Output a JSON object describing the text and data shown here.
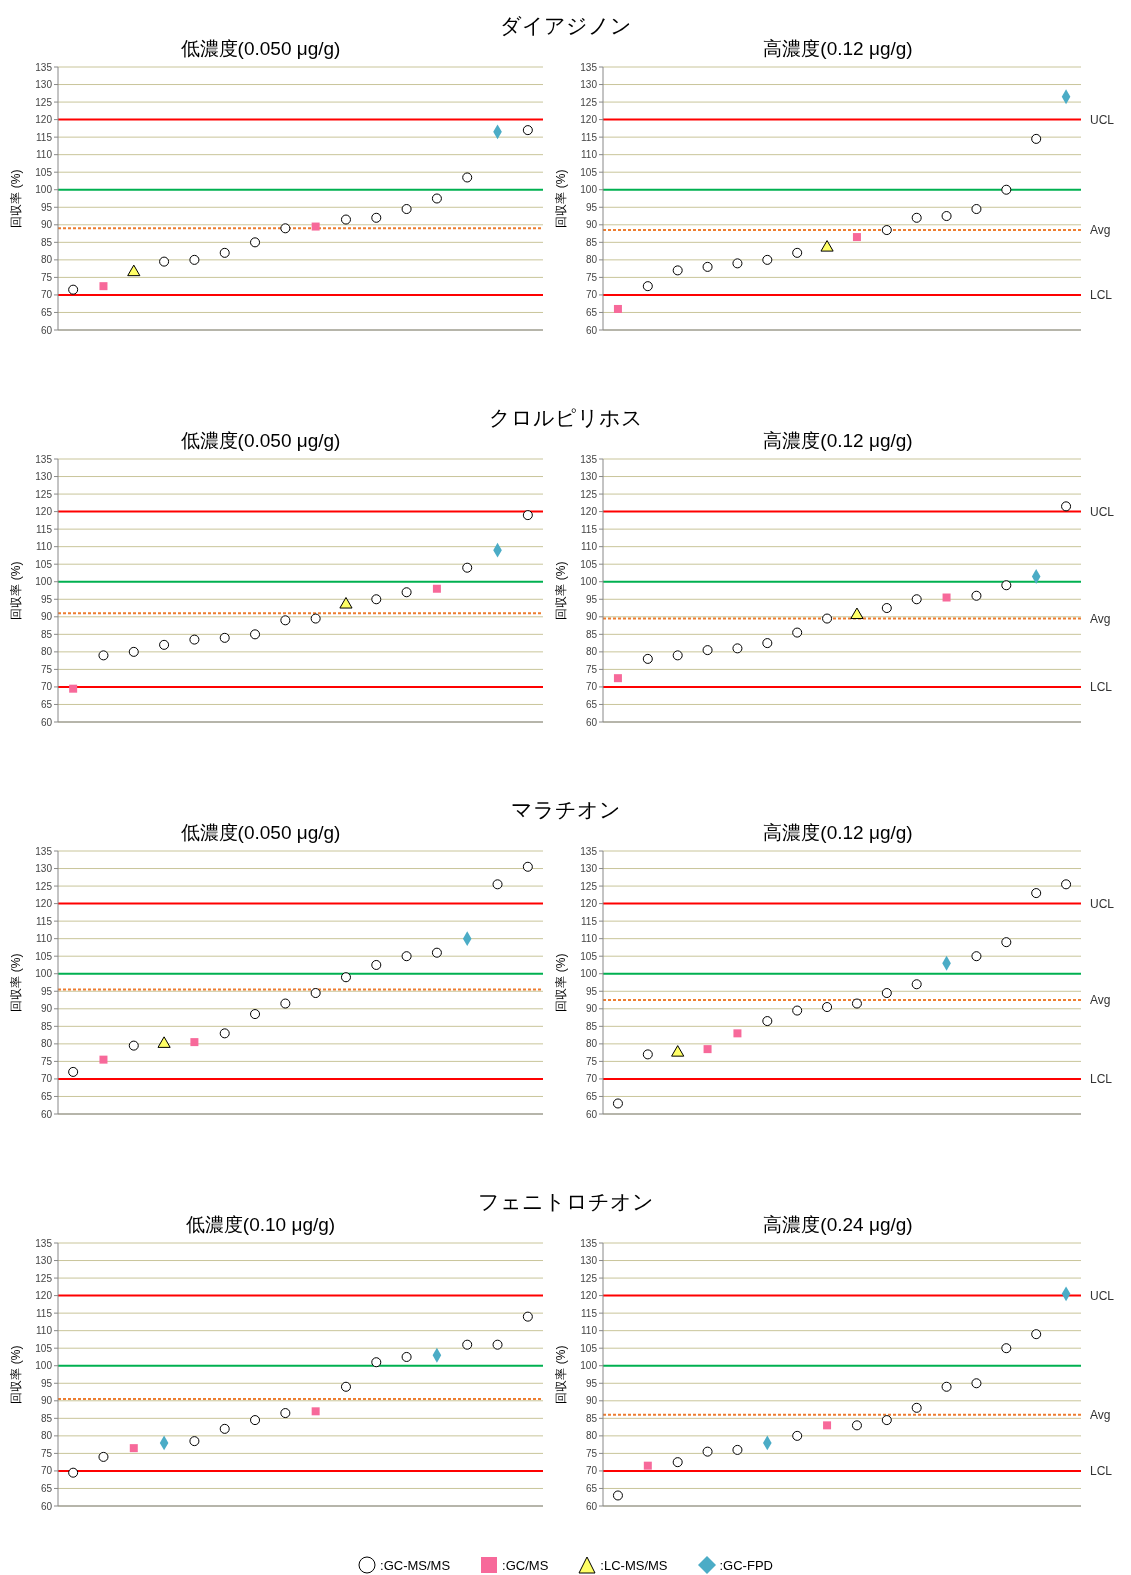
{
  "chart_data": [
    {
      "type": "scatter",
      "title": "ダイアジノン",
      "subtitle": "低濃度(0.050 μg/g)",
      "ylabel": "回収率 (%)",
      "categories": [
        null,
        null,
        null,
        null,
        null,
        null,
        null,
        null,
        null,
        null,
        null,
        null,
        null,
        null,
        null,
        null
      ],
      "ylim": [
        60,
        135
      ],
      "yticks": [
        60,
        65,
        70,
        75,
        80,
        85,
        90,
        95,
        100,
        105,
        110,
        115,
        120,
        125,
        130,
        135
      ],
      "grid": "y",
      "tick_labels": "y",
      "series": [
        {
          "marker": "circle",
          "color": "#000000",
          "values": [
            71.5,
            null,
            null,
            79.5,
            80,
            82,
            85,
            89,
            null,
            91.5,
            92,
            94.5,
            97.5,
            103.5,
            null,
            117
          ]
        },
        {
          "marker": "square",
          "color": "#f7699a",
          "values": [
            null,
            72.5,
            null,
            null,
            null,
            null,
            null,
            null,
            89.5,
            null,
            null,
            null,
            null,
            null,
            null,
            null
          ]
        },
        {
          "marker": "triangle",
          "color": "#ffff66",
          "values": [
            null,
            null,
            76.5,
            null,
            null,
            null,
            null,
            null,
            null,
            null,
            null,
            null,
            null,
            null,
            null,
            null
          ]
        },
        {
          "marker": "diamond",
          "color": "#4bacc6",
          "values": [
            null,
            null,
            null,
            null,
            null,
            null,
            null,
            null,
            null,
            null,
            null,
            null,
            null,
            null,
            116.5,
            null
          ]
        }
      ],
      "ref_lines": [
        {
          "axis": "y",
          "value": 120,
          "color": "#ff0000",
          "line_style": "solid"
        },
        {
          "axis": "y",
          "value": 100,
          "color": "#00b050",
          "line_style": "solid"
        },
        {
          "axis": "y",
          "value": 89,
          "color": "#ed7d31",
          "line_style": "dotted"
        },
        {
          "axis": "y",
          "value": 70,
          "color": "#fe0101",
          "line_style": "solid"
        }
      ]
    },
    {
      "type": "scatter",
      "subtitle": "高濃度(0.12 μg/g)",
      "ylabel": "回収率 (%)",
      "categories": [
        null,
        null,
        null,
        null,
        null,
        null,
        null,
        null,
        null,
        null,
        null,
        null,
        null,
        null,
        null,
        null
      ],
      "ylim": [
        60,
        135
      ],
      "yticks": [
        60,
        65,
        70,
        75,
        80,
        85,
        90,
        95,
        100,
        105,
        110,
        115,
        120,
        125,
        130,
        135
      ],
      "grid": "y",
      "tick_labels": "y",
      "series": [
        {
          "marker": "circle",
          "color": "#000000",
          "values": [
            null,
            72.5,
            77,
            78,
            79,
            80,
            82,
            null,
            null,
            88.5,
            92,
            92.5,
            94.5,
            100,
            114.5,
            null
          ]
        },
        {
          "marker": "square",
          "color": "#f7699a",
          "values": [
            66,
            null,
            null,
            null,
            null,
            null,
            null,
            null,
            86.5,
            null,
            null,
            null,
            null,
            null,
            null,
            null
          ]
        },
        {
          "marker": "triangle",
          "color": "#ffff66",
          "values": [
            null,
            null,
            null,
            null,
            null,
            null,
            null,
            83.5,
            null,
            null,
            null,
            null,
            null,
            null,
            null,
            null
          ]
        },
        {
          "marker": "diamond",
          "color": "#4bacc6",
          "values": [
            null,
            null,
            null,
            null,
            null,
            null,
            null,
            null,
            null,
            null,
            null,
            null,
            null,
            null,
            null,
            126.5
          ]
        }
      ],
      "ref_lines": [
        {
          "axis": "y",
          "value": 120,
          "label": "UCL",
          "color": "#ff0000",
          "line_style": "solid"
        },
        {
          "axis": "y",
          "value": 100,
          "color": "#00b050",
          "line_style": "solid"
        },
        {
          "axis": "y",
          "value": 88.5,
          "label": "Avg",
          "color": "#ed7d31",
          "line_style": "dotted"
        },
        {
          "axis": "y",
          "value": 70,
          "label": "LCL",
          "color": "#fe0101",
          "line_style": "solid"
        }
      ]
    },
    {
      "type": "scatter",
      "title": "クロルピリホス",
      "subtitle": "低濃度(0.050 μg/g)",
      "ylabel": "回収率 (%)",
      "categories": [
        null,
        null,
        null,
        null,
        null,
        null,
        null,
        null,
        null,
        null,
        null,
        null,
        null,
        null,
        null,
        null
      ],
      "ylim": [
        60,
        135
      ],
      "yticks": [
        60,
        65,
        70,
        75,
        80,
        85,
        90,
        95,
        100,
        105,
        110,
        115,
        120,
        125,
        130,
        135
      ],
      "grid": "y",
      "tick_labels": "y",
      "series": [
        {
          "marker": "circle",
          "color": "#000000",
          "values": [
            null,
            79,
            80,
            82,
            83.5,
            84,
            85,
            89,
            89.5,
            null,
            95,
            97,
            null,
            104,
            null,
            119
          ]
        },
        {
          "marker": "square",
          "color": "#f7699a",
          "values": [
            69.5,
            null,
            null,
            null,
            null,
            null,
            null,
            null,
            null,
            null,
            null,
            null,
            98,
            null,
            null,
            null
          ]
        },
        {
          "marker": "triangle",
          "color": "#ffff66",
          "values": [
            null,
            null,
            null,
            null,
            null,
            null,
            null,
            null,
            null,
            93.5,
            null,
            null,
            null,
            null,
            null,
            null
          ]
        },
        {
          "marker": "diamond",
          "color": "#4bacc6",
          "values": [
            null,
            null,
            null,
            null,
            null,
            null,
            null,
            null,
            null,
            null,
            null,
            null,
            null,
            null,
            109,
            null
          ]
        }
      ],
      "ref_lines": [
        {
          "axis": "y",
          "value": 120,
          "color": "#ff0000",
          "line_style": "solid"
        },
        {
          "axis": "y",
          "value": 100,
          "color": "#00b050",
          "line_style": "solid"
        },
        {
          "axis": "y",
          "value": 91,
          "color": "#ed7d31",
          "line_style": "dotted"
        },
        {
          "axis": "y",
          "value": 70,
          "color": "#fe0101",
          "line_style": "solid"
        }
      ]
    },
    {
      "type": "scatter",
      "subtitle": "高濃度(0.12 μg/g)",
      "ylabel": "回収率 (%)",
      "categories": [
        null,
        null,
        null,
        null,
        null,
        null,
        null,
        null,
        null,
        null,
        null,
        null,
        null,
        null,
        null,
        null
      ],
      "ylim": [
        60,
        135
      ],
      "yticks": [
        60,
        65,
        70,
        75,
        80,
        85,
        90,
        95,
        100,
        105,
        110,
        115,
        120,
        125,
        130,
        135
      ],
      "grid": "y",
      "tick_labels": "y",
      "series": [
        {
          "marker": "circle",
          "color": "#000000",
          "values": [
            null,
            78,
            79,
            80.5,
            81,
            82.5,
            85.5,
            89.5,
            null,
            92.5,
            95,
            null,
            96,
            99,
            null,
            121.5
          ]
        },
        {
          "marker": "square",
          "color": "#f7699a",
          "values": [
            72.5,
            null,
            null,
            null,
            null,
            null,
            null,
            null,
            null,
            null,
            null,
            95.5,
            null,
            null,
            null,
            null
          ]
        },
        {
          "marker": "triangle",
          "color": "#ffff66",
          "values": [
            null,
            null,
            null,
            null,
            null,
            null,
            null,
            null,
            90.5,
            null,
            null,
            null,
            null,
            null,
            null,
            null
          ]
        },
        {
          "marker": "diamond",
          "color": "#4bacc6",
          "values": [
            null,
            null,
            null,
            null,
            null,
            null,
            null,
            null,
            null,
            null,
            null,
            null,
            null,
            null,
            101.5,
            null
          ]
        }
      ],
      "ref_lines": [
        {
          "axis": "y",
          "value": 120,
          "label": "UCL",
          "color": "#ff0000",
          "line_style": "solid"
        },
        {
          "axis": "y",
          "value": 100,
          "color": "#00b050",
          "line_style": "solid"
        },
        {
          "axis": "y",
          "value": 89.5,
          "label": "Avg",
          "color": "#ed7d31",
          "line_style": "dotted"
        },
        {
          "axis": "y",
          "value": 70,
          "label": "LCL",
          "color": "#fe0101",
          "line_style": "solid"
        }
      ]
    },
    {
      "type": "scatter",
      "title": "マラチオン",
      "subtitle": "低濃度(0.050 μg/g)",
      "ylabel": "回収率 (%)",
      "categories": [
        null,
        null,
        null,
        null,
        null,
        null,
        null,
        null,
        null,
        null,
        null,
        null,
        null,
        null,
        null,
        null
      ],
      "ylim": [
        60,
        135
      ],
      "yticks": [
        60,
        65,
        70,
        75,
        80,
        85,
        90,
        95,
        100,
        105,
        110,
        115,
        120,
        125,
        130,
        135
      ],
      "grid": "y",
      "tick_labels": "y",
      "series": [
        {
          "marker": "circle",
          "color": "#000000",
          "values": [
            72,
            null,
            79.5,
            null,
            null,
            83,
            88.5,
            91.5,
            94.5,
            99,
            102.5,
            105,
            106,
            null,
            125.5,
            130.5
          ]
        },
        {
          "marker": "square",
          "color": "#f7699a",
          "values": [
            null,
            75.5,
            null,
            null,
            80.5,
            null,
            null,
            null,
            null,
            null,
            null,
            null,
            null,
            null,
            null,
            null
          ]
        },
        {
          "marker": "triangle",
          "color": "#ffff66",
          "values": [
            null,
            null,
            null,
            80,
            null,
            null,
            null,
            null,
            null,
            null,
            null,
            null,
            null,
            null,
            null,
            null
          ]
        },
        {
          "marker": "diamond",
          "color": "#4bacc6",
          "values": [
            null,
            null,
            null,
            null,
            null,
            null,
            null,
            null,
            null,
            null,
            null,
            null,
            null,
            110,
            null,
            null
          ]
        }
      ],
      "ref_lines": [
        {
          "axis": "y",
          "value": 120,
          "color": "#ff0000",
          "line_style": "solid"
        },
        {
          "axis": "y",
          "value": 100,
          "color": "#00b050",
          "line_style": "solid"
        },
        {
          "axis": "y",
          "value": 95.5,
          "color": "#ed7d31",
          "line_style": "dotted"
        },
        {
          "axis": "y",
          "value": 70,
          "color": "#fe0101",
          "line_style": "solid"
        }
      ]
    },
    {
      "type": "scatter",
      "subtitle": "高濃度(0.12 μg/g)",
      "ylabel": "回収率 (%)",
      "categories": [
        null,
        null,
        null,
        null,
        null,
        null,
        null,
        null,
        null,
        null,
        null,
        null,
        null,
        null,
        null,
        null
      ],
      "ylim": [
        60,
        135
      ],
      "yticks": [
        60,
        65,
        70,
        75,
        80,
        85,
        90,
        95,
        100,
        105,
        110,
        115,
        120,
        125,
        130,
        135
      ],
      "grid": "y",
      "tick_labels": "y",
      "series": [
        {
          "marker": "circle",
          "color": "#000000",
          "values": [
            63,
            77,
            null,
            null,
            null,
            86.5,
            89.5,
            90.5,
            91.5,
            94.5,
            97,
            null,
            105,
            109,
            123,
            125.5
          ]
        },
        {
          "marker": "square",
          "color": "#f7699a",
          "values": [
            null,
            null,
            null,
            78.5,
            83,
            null,
            null,
            null,
            null,
            null,
            null,
            null,
            null,
            null,
            null,
            null
          ]
        },
        {
          "marker": "triangle",
          "color": "#ffff66",
          "values": [
            null,
            null,
            77.5,
            null,
            null,
            null,
            null,
            null,
            null,
            null,
            null,
            null,
            null,
            null,
            null,
            null
          ]
        },
        {
          "marker": "diamond",
          "color": "#4bacc6",
          "values": [
            null,
            null,
            null,
            null,
            null,
            null,
            null,
            null,
            null,
            null,
            null,
            103,
            null,
            null,
            null,
            null
          ]
        }
      ],
      "ref_lines": [
        {
          "axis": "y",
          "value": 120,
          "label": "UCL",
          "color": "#ff0000",
          "line_style": "solid"
        },
        {
          "axis": "y",
          "value": 100,
          "color": "#00b050",
          "line_style": "solid"
        },
        {
          "axis": "y",
          "value": 92.5,
          "label": "Avg",
          "color": "#ed7d31",
          "line_style": "dotted"
        },
        {
          "axis": "y",
          "value": 70,
          "label": "LCL",
          "color": "#fe0101",
          "line_style": "solid"
        }
      ]
    },
    {
      "type": "scatter",
      "title": "フェニトロチオン",
      "subtitle": "低濃度(0.10 μg/g)",
      "ylabel": "回収率 (%)",
      "categories": [
        null,
        null,
        null,
        null,
        null,
        null,
        null,
        null,
        null,
        null,
        null,
        null,
        null,
        null,
        null,
        null
      ],
      "ylim": [
        60,
        135
      ],
      "yticks": [
        60,
        65,
        70,
        75,
        80,
        85,
        90,
        95,
        100,
        105,
        110,
        115,
        120,
        125,
        130,
        135
      ],
      "grid": "y",
      "tick_labels": "y",
      "legend": "bottom",
      "series": [
        {
          "name": ":GC-MS/MS",
          "marker": "circle",
          "color": "#000000",
          "values": [
            69.5,
            74,
            null,
            null,
            78.5,
            82,
            84.5,
            86.5,
            null,
            94,
            101,
            102.5,
            null,
            106,
            106,
            114
          ]
        },
        {
          "name": ":GC/MS",
          "marker": "square",
          "color": "#f7699a",
          "values": [
            null,
            null,
            76.5,
            null,
            null,
            null,
            null,
            null,
            87,
            null,
            null,
            null,
            null,
            null,
            null,
            null
          ]
        },
        {
          "name": ":LC-MS/MS",
          "marker": "triangle",
          "color": "#ffff66",
          "values": [
            null,
            null,
            null,
            null,
            null,
            null,
            null,
            null,
            null,
            null,
            null,
            null,
            null,
            null,
            null,
            null
          ]
        },
        {
          "name": ":GC-FPD",
          "marker": "diamond",
          "color": "#4bacc6",
          "values": [
            null,
            null,
            null,
            78,
            null,
            null,
            null,
            null,
            null,
            null,
            null,
            null,
            103,
            null,
            null,
            null
          ]
        }
      ],
      "ref_lines": [
        {
          "axis": "y",
          "value": 120,
          "color": "#ff0000",
          "line_style": "solid"
        },
        {
          "axis": "y",
          "value": 100,
          "color": "#00b050",
          "line_style": "solid"
        },
        {
          "axis": "y",
          "value": 90.5,
          "color": "#ed7d31",
          "line_style": "dotted"
        },
        {
          "axis": "y",
          "value": 70,
          "color": "#fe0101",
          "line_style": "solid"
        }
      ]
    },
    {
      "type": "scatter",
      "subtitle": "高濃度(0.24 μg/g)",
      "ylabel": "回収率 (%)",
      "categories": [
        null,
        null,
        null,
        null,
        null,
        null,
        null,
        null,
        null,
        null,
        null,
        null,
        null,
        null,
        null,
        null
      ],
      "ylim": [
        60,
        135
      ],
      "yticks": [
        60,
        65,
        70,
        75,
        80,
        85,
        90,
        95,
        100,
        105,
        110,
        115,
        120,
        125,
        130,
        135
      ],
      "grid": "y",
      "tick_labels": "y",
      "series": [
        {
          "marker": "circle",
          "color": "#000000",
          "values": [
            63,
            null,
            72.5,
            75.5,
            76,
            null,
            80,
            null,
            83,
            84.5,
            88,
            94,
            95,
            105,
            109,
            null
          ]
        },
        {
          "marker": "square",
          "color": "#f7699a",
          "values": [
            null,
            71.5,
            null,
            null,
            null,
            null,
            null,
            83,
            null,
            null,
            null,
            null,
            null,
            null,
            null,
            null
          ]
        },
        {
          "marker": "triangle",
          "color": "#ffff66",
          "values": [
            null,
            null,
            null,
            null,
            null,
            null,
            null,
            null,
            null,
            null,
            null,
            null,
            null,
            null,
            null,
            null
          ]
        },
        {
          "marker": "diamond",
          "color": "#4bacc6",
          "values": [
            null,
            null,
            null,
            null,
            null,
            78,
            null,
            null,
            null,
            null,
            null,
            null,
            null,
            null,
            null,
            120.5
          ]
        }
      ],
      "ref_lines": [
        {
          "axis": "y",
          "value": 120,
          "label": "UCL",
          "color": "#ff0000",
          "line_style": "solid"
        },
        {
          "axis": "y",
          "value": 100,
          "color": "#00b050",
          "line_style": "solid"
        },
        {
          "axis": "y",
          "value": 86,
          "label": "Avg",
          "color": "#ed7d31",
          "line_style": "dotted"
        },
        {
          "axis": "y",
          "value": 70,
          "label": "LCL",
          "color": "#fe0101",
          "line_style": "solid"
        }
      ]
    }
  ]
}
